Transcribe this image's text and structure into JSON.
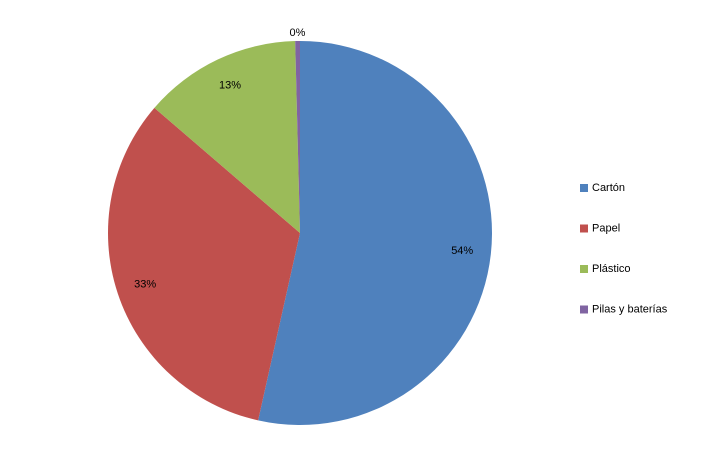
{
  "chart_data": {
    "type": "pie",
    "categories": [
      "Cartón",
      "Papel",
      "Plástico",
      "Pilas y baterías"
    ],
    "values": [
      53.5,
      32.8,
      13.3,
      0.4
    ],
    "value_labels": [
      "54%",
      "33%",
      "13%",
      "0%"
    ],
    "colors": [
      "#4f81bd",
      "#c0504d",
      "#9bbb59",
      "#8064a2"
    ],
    "legend": "right"
  }
}
